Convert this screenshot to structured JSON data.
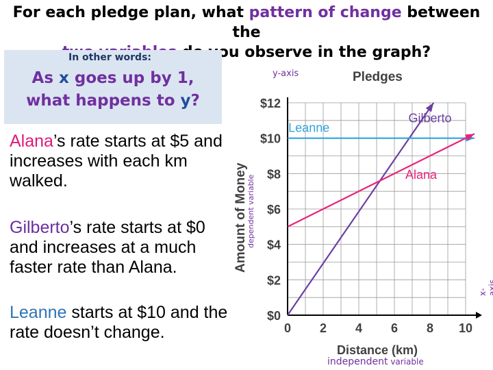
{
  "header": {
    "title_part1": "For each pledge plan, what ",
    "title_highlight1": "pattern of change",
    "title_part2": " between the",
    "title_highlight2": "two variables",
    "title_part3": " do you observe in the graph?"
  },
  "callout": {
    "subtitle": "In other words:",
    "line1_a": "As ",
    "line1_x": "x",
    "line1_b": " goes up by 1,",
    "line2_a": "what happens to ",
    "line2_y": "y",
    "line2_b": "?"
  },
  "statements": {
    "alana_name": "Alana",
    "alana_text": "’s rate starts at $5 and increases with each km walked.",
    "gilberto_name": "Gilberto",
    "gilberto_text": "’s rate starts at $0 and increases at  a much faster rate than Alana.",
    "leanne_name": "Leanne",
    "leanne_text": " starts at $10 and the rate doesn’t change."
  },
  "annotations": {
    "y_axis": "y-axis",
    "x_axis": "x-axis",
    "dependent": "dependent variable",
    "independent_word": "independent",
    "independent_variable": " variable"
  },
  "chart_data": {
    "type": "line",
    "title": "Pledges",
    "xlabel": "Distance (km)",
    "ylabel": "Amount of Money",
    "xlim": [
      0,
      10
    ],
    "ylim": [
      0,
      12
    ],
    "x_ticks": [
      "0",
      "2",
      "4",
      "6",
      "8",
      "10"
    ],
    "y_ticks": [
      "$0",
      "$2",
      "$4",
      "$6",
      "$8",
      "$10",
      "$12"
    ],
    "grid": true,
    "series": [
      {
        "name": "Gilberto",
        "color": "#6b3fa0",
        "x": [
          0,
          8.2
        ],
        "y": [
          0,
          12
        ]
      },
      {
        "name": "Leanne",
        "color": "#2ea3dc",
        "x": [
          0,
          10.5
        ],
        "y": [
          10,
          10
        ]
      },
      {
        "name": "Alana",
        "color": "#e8247c",
        "x": [
          0,
          10.5
        ],
        "y": [
          5,
          10.25
        ]
      }
    ]
  }
}
